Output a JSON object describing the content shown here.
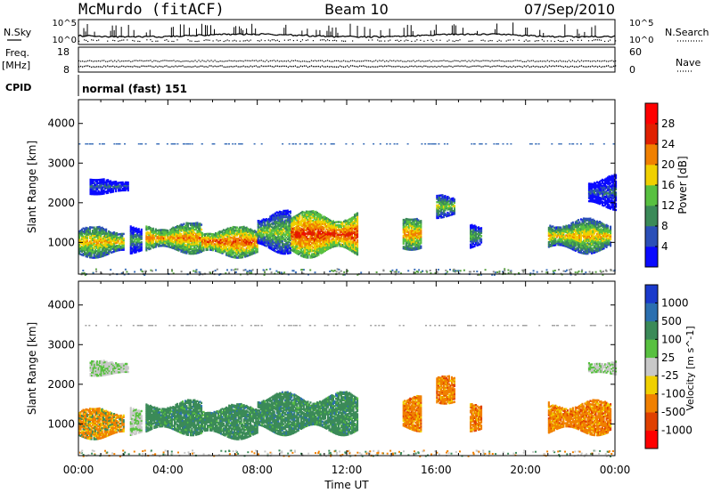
{
  "header": {
    "station": "McMurdo (fitACF)",
    "beam": "Beam 10",
    "date": "07/Sep/2010"
  },
  "top_panels": {
    "nsky_label": "N.Sky",
    "nsearch_label": "N.Search",
    "freq_label_1": "Freq.",
    "freq_label_2": "[MHz]",
    "nave_label": "Nave",
    "cpid_label": "CPID",
    "cpid_value": "normal (fast) 151",
    "nsky_ticks": [
      "10^5",
      "10^0"
    ],
    "nsearch_ticks": [
      "10^5",
      "10^0"
    ],
    "freq_ticks": [
      "18",
      "8"
    ],
    "nave_ticks": [
      "60",
      "0"
    ]
  },
  "chart_data": [
    {
      "type": "heatmap",
      "name": "Power",
      "ylabel": "Slant Range [km]",
      "xlabel": "Time UT",
      "x_ticks": [
        "00:00",
        "04:00",
        "08:00",
        "12:00",
        "16:00",
        "20:00",
        "00:00"
      ],
      "y_ticks": [
        1000,
        2000,
        3000,
        4000
      ],
      "ylim": [
        200,
        4600
      ],
      "xlim_hours": [
        0,
        24
      ],
      "colorbar": {
        "label": "Power [dB]",
        "ticks": [
          "4",
          "8",
          "12",
          "16",
          "20",
          "24",
          "28"
        ],
        "colors": [
          "#0a0aff",
          "#2b4fb8",
          "#3b8a58",
          "#58c040",
          "#f0d000",
          "#f08000",
          "#e02000",
          "#ff0000"
        ]
      },
      "echo_regions": [
        {
          "t0": 0.0,
          "t1": 2.0,
          "r0": 600,
          "r1": 1400,
          "level": 20
        },
        {
          "t0": 0.5,
          "t1": 2.2,
          "r0": 2200,
          "r1": 2600,
          "level": 8
        },
        {
          "t0": 2.3,
          "t1": 2.8,
          "r0": 700,
          "r1": 1400,
          "level": 12
        },
        {
          "t0": 3.0,
          "t1": 5.5,
          "r0": 700,
          "r1": 1500,
          "level": 22
        },
        {
          "t0": 5.5,
          "t1": 8.0,
          "r0": 600,
          "r1": 1400,
          "level": 24
        },
        {
          "t0": 8.0,
          "t1": 9.5,
          "r0": 700,
          "r1": 1800,
          "level": 16
        },
        {
          "t0": 9.5,
          "t1": 12.5,
          "r0": 600,
          "r1": 1800,
          "level": 26
        },
        {
          "t0": 14.5,
          "t1": 15.3,
          "r0": 800,
          "r1": 1600,
          "level": 22
        },
        {
          "t0": 16.0,
          "t1": 16.8,
          "r0": 1600,
          "r1": 2200,
          "level": 16
        },
        {
          "t0": 17.5,
          "t1": 18.0,
          "r0": 800,
          "r1": 1500,
          "level": 14
        },
        {
          "t0": 21.0,
          "t1": 23.8,
          "r0": 700,
          "r1": 1600,
          "level": 20
        },
        {
          "t0": 22.8,
          "t1": 24.0,
          "r0": 1800,
          "r1": 2700,
          "level": 8
        }
      ]
    },
    {
      "type": "heatmap",
      "name": "Velocity",
      "ylabel": "Slant Range [km]",
      "xlabel": "Time UT",
      "x_ticks": [
        "00:00",
        "04:00",
        "08:00",
        "12:00",
        "16:00",
        "20:00",
        "00:00"
      ],
      "y_ticks": [
        1000,
        2000,
        3000,
        4000
      ],
      "ylim": [
        200,
        4600
      ],
      "xlim_hours": [
        0,
        24
      ],
      "colorbar": {
        "label": "Velocity [m s^-1]",
        "ticks": [
          "1000",
          "500",
          "100",
          "25",
          "-25",
          "-100",
          "-500",
          "-1000"
        ],
        "colors": [
          "#1a3acc",
          "#2b6fb0",
          "#3b8a58",
          "#58c040",
          "#c8c8c8",
          "#f0d000",
          "#f08000",
          "#e04000",
          "#ff0000"
        ]
      },
      "echo_regions": [
        {
          "t0": 0.0,
          "t1": 2.0,
          "r0": 600,
          "r1": 1400,
          "level": -100
        },
        {
          "t0": 0.5,
          "t1": 2.2,
          "r0": 2200,
          "r1": 2600,
          "level": 25
        },
        {
          "t0": 2.3,
          "t1": 2.8,
          "r0": 700,
          "r1": 1400,
          "level": 25
        },
        {
          "t0": 3.0,
          "t1": 5.5,
          "r0": 700,
          "r1": 1600,
          "level": 500
        },
        {
          "t0": 5.5,
          "t1": 8.0,
          "r0": 600,
          "r1": 1500,
          "level": 500
        },
        {
          "t0": 8.0,
          "t1": 12.5,
          "r0": 700,
          "r1": 1800,
          "level": 500
        },
        {
          "t0": 14.5,
          "t1": 15.3,
          "r0": 800,
          "r1": 1700,
          "level": -500
        },
        {
          "t0": 16.0,
          "t1": 16.8,
          "r0": 1500,
          "r1": 2200,
          "level": -500
        },
        {
          "t0": 17.5,
          "t1": 18.0,
          "r0": 800,
          "r1": 1500,
          "level": -500
        },
        {
          "t0": 21.0,
          "t1": 23.8,
          "r0": 700,
          "r1": 1600,
          "level": -500
        },
        {
          "t0": 22.8,
          "t1": 24.0,
          "r0": 2200,
          "r1": 2600,
          "level": 25
        }
      ]
    }
  ]
}
